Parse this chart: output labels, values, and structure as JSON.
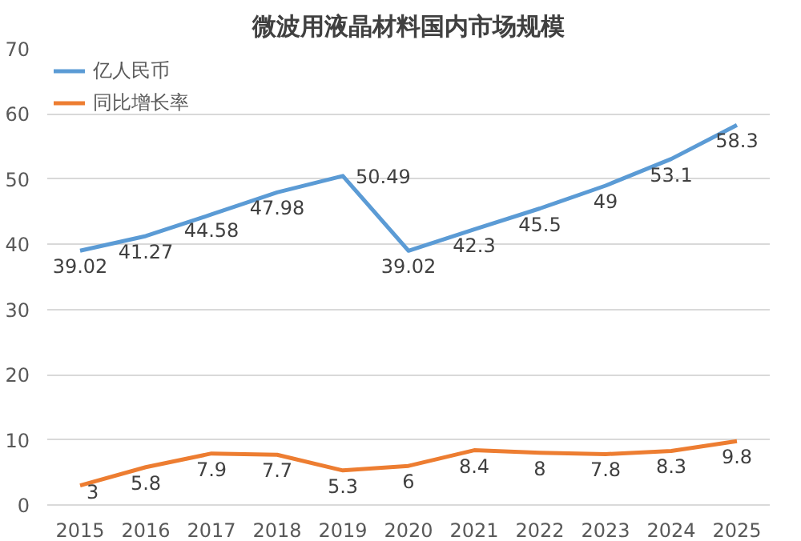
{
  "chart_data": {
    "type": "line",
    "title": "微波用液晶材料国内市场规模",
    "categories": [
      "2015",
      "2016",
      "2017",
      "2018",
      "2019",
      "2020",
      "2021",
      "2022",
      "2023",
      "2024",
      "2025"
    ],
    "series": [
      {
        "name": "亿人民币",
        "color": "#5b9bd5",
        "values": [
          39.02,
          41.27,
          44.58,
          47.98,
          50.49,
          39.02,
          42.3,
          45.5,
          49,
          53.1,
          58.3
        ]
      },
      {
        "name": "同比增长率",
        "color": "#ed7d31",
        "values": [
          3,
          5.8,
          7.9,
          7.7,
          5.3,
          6,
          8.4,
          8,
          7.8,
          8.3,
          9.8
        ]
      }
    ],
    "ylim": [
      0,
      70
    ],
    "yticks": [
      0,
      10,
      20,
      30,
      40,
      50,
      60,
      70
    ],
    "grid": "y",
    "legend": "top left",
    "data_labels": true,
    "marker": "none",
    "line_style": "solid"
  }
}
